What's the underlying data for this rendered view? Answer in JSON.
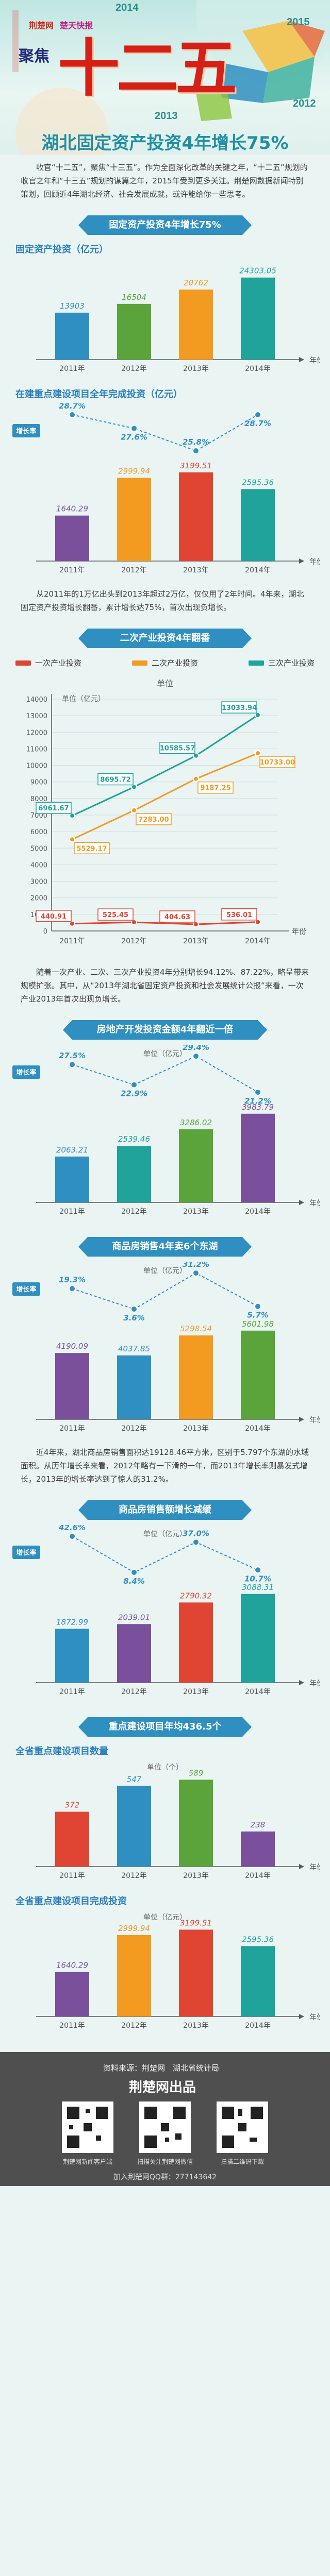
{
  "header": {
    "years": [
      "2014",
      "2015",
      "2013",
      "2012"
    ],
    "logo_left": "荆楚网",
    "logo_right": "楚天快报",
    "focus_label": "聚焦",
    "big_title": "十二五",
    "headline": "湖北固定资产投资4年增长75%"
  },
  "intro": "收官“十二五”，聚焦“十三五”。作为全面深化改革的关键之年，“十二五”规划的收官之年和“十三五”规划的谋篇之年，2015年受到更多关注。荆楚网数据新闻特别策划，回顾近4年湖北经济、社会发展成就，或许能给你一些思考。",
  "sections": {
    "s1_banner": "固定资产投资4年增长75%",
    "s1_chart1_title": "固定资产投资（亿元）",
    "s1_chart2_title": "在建重点建设项目全年完成投资（亿元）",
    "s1_text": "从2011年的1万亿出头到2013年超过2万亿，仅仅用了2年时间。4年来，湖北固定资产投资增长翻番，累计增长达75%，首次出现负增长。",
    "s2_banner": "二次产业投资4年翻番",
    "s2_text": "随着一次产业、二次、三次产业投资4年分别增长94.12%、87.22%，略呈带来规模扩张。其中，从“2013年湖北省固定资产投资和社会发展统计公报”来看，一次产业2013年首次出现负增长。",
    "s3_banner": "房地产开发投资金额4年翻近一倍",
    "s4_banner": "商品房销售4年卖6个东湖",
    "s4_text": "近4年来，湖北商品房销售面积达19128.46平方米，区别于5.797个东湖的水域面积。从历年增长率来看，2012年略有一下滑的一年，而2013年增长率则暴发式增长，2013年的增长率达到了惊人的31.2%。",
    "s5_banner": "商品房销售额增长减缓",
    "s6_banner": "重点建设项目年均436.5个",
    "s6_chart1_title": "全省重点建设项目数量",
    "s6_chart1_unit": "单位（个）",
    "s6_chart2_title": "全省重点建设项目完成投资",
    "s6_chart2_unit": "单位（亿元）"
  },
  "units": {
    "year_axis": "年份",
    "hundred_million": "单位（亿元）",
    "unit_label": "单位",
    "rate_label": "增长率"
  },
  "legend": {
    "primary": "一次产业投资",
    "secondary": "二次产业投资",
    "tertiary": "三次产业投资"
  },
  "colors": {
    "teal": "#1fa39a",
    "green": "#5aa43b",
    "orange": "#f39a21",
    "red": "#e04533",
    "blue": "#2f8fc0",
    "purple": "#7a4f9c"
  },
  "chart_data": [
    {
      "type": "bar",
      "title": "固定资产投资（亿元）",
      "categories": [
        "2011年",
        "2012年",
        "2013年",
        "2014年"
      ],
      "values": [
        13903,
        16504,
        20762,
        24303.05
      ],
      "labels": [
        "13903",
        "16504",
        "20762",
        "24303.05"
      ],
      "xlabel": "年份"
    },
    {
      "type": "bar",
      "title": "在建重点建设项目全年完成投资（亿元）",
      "categories": [
        "2011年",
        "2012年",
        "2013年",
        "2014年"
      ],
      "values": [
        1640.29,
        2999.94,
        3199.51,
        2595.36
      ],
      "labels": [
        "1640.29",
        "2999.94",
        "3199.51",
        "2595.36"
      ],
      "growth_label": "增长率",
      "growth": [
        28.7,
        27.6,
        25.8,
        28.7
      ],
      "growth_labels": [
        "28.7%",
        "27.6%",
        "25.8%",
        "28.7%"
      ],
      "xlabel": "年份"
    },
    {
      "type": "line",
      "ylabel": "单位（亿元）",
      "categories": [
        "2011年",
        "2012年",
        "2013年",
        "2014年"
      ],
      "ylim": [
        0,
        14000
      ],
      "yticks": [
        0,
        1000,
        2000,
        3000,
        4000,
        5000,
        6000,
        7000,
        8000,
        9000,
        10000,
        11000,
        12000,
        13000,
        14000
      ],
      "series": [
        {
          "name": "一次产业投资",
          "values": [
            440.91,
            525.45,
            404.63,
            536.01
          ],
          "labels": [
            "440.91",
            "525.45",
            "404.63",
            "536.01"
          ]
        },
        {
          "name": "二次产业投资",
          "values": [
            5529.17,
            7283.0,
            9187.25,
            10733.0
          ],
          "labels": [
            "5529.17",
            "7283.00",
            "9187.25",
            "10733.00"
          ]
        },
        {
          "name": "三次产业投资",
          "values": [
            6961.67,
            8695.72,
            10585.57,
            13033.94
          ],
          "labels": [
            "6961.67",
            "8695.72",
            "10585.57",
            "13033.94"
          ]
        }
      ],
      "xlabel": "年份"
    },
    {
      "type": "bar",
      "ylabel": "单位（亿元）",
      "categories": [
        "2011年",
        "2012年",
        "2013年",
        "2014年"
      ],
      "values": [
        2063.21,
        2539.46,
        3286.02,
        3983.79
      ],
      "labels": [
        "2063.21",
        "2539.46",
        "3286.02",
        "3983.79"
      ],
      "growth_label": "增长率",
      "growth": [
        27.5,
        22.9,
        29.4,
        21.2
      ],
      "growth_labels": [
        "27.5%",
        "22.9%",
        "29.4%",
        "21.2%"
      ],
      "xlabel": "年份"
    },
    {
      "type": "bar",
      "ylabel": "单位（亿元）",
      "categories": [
        "2011年",
        "2012年",
        "2013年",
        "2014年"
      ],
      "values": [
        4190.09,
        4037.85,
        5298.54,
        5601.98
      ],
      "labels": [
        "4190.09",
        "4037.85",
        "5298.54",
        "5601.98"
      ],
      "growth_label": "增长率",
      "growth": [
        19.3,
        3.6,
        31.2,
        5.7
      ],
      "growth_labels": [
        "19.3%",
        "3.6%",
        "31.2%",
        "5.7%"
      ],
      "xlabel": "年份"
    },
    {
      "type": "bar",
      "ylabel": "单位（亿元）",
      "categories": [
        "2011年",
        "2012年",
        "2013年",
        "2014年"
      ],
      "values": [
        1872.99,
        2039.01,
        2790.32,
        3088.31
      ],
      "labels": [
        "1872.99",
        "2039.01",
        "2790.32",
        "3088.31"
      ],
      "growth_label": "增长率",
      "growth": [
        42.6,
        8.4,
        37.0,
        10.7
      ],
      "growth_labels": [
        "42.6%",
        "8.4%",
        "37.0%",
        "10.7%"
      ],
      "xlabel": "年份"
    },
    {
      "type": "bar",
      "title": "全省重点建设项目数量",
      "ylabel": "单位（个）",
      "categories": [
        "2011年",
        "2012年",
        "2013年",
        "2014年"
      ],
      "values": [
        372,
        547,
        589,
        238
      ],
      "labels": [
        "372",
        "547",
        "589",
        "238"
      ],
      "xlabel": "年份"
    },
    {
      "type": "bar",
      "title": "全省重点建设项目完成投资",
      "ylabel": "单位（亿元）",
      "categories": [
        "2011年",
        "2012年",
        "2013年",
        "2014年"
      ],
      "values": [
        1640.29,
        2999.94,
        3199.51,
        2595.36
      ],
      "labels": [
        "1640.29",
        "2999.94",
        "3199.51",
        "2595.36"
      ],
      "xlabel": "年份"
    }
  ],
  "footer": {
    "source": "资料来源：荆楚网　湖北省统计局",
    "brand": "荆楚网出品",
    "qr_labels": [
      "荆楚网新闻客户端",
      "扫描关注荆楚网微信",
      "扫描二维码下载"
    ],
    "qq": "加入荆楚网QQ群：277143642"
  }
}
